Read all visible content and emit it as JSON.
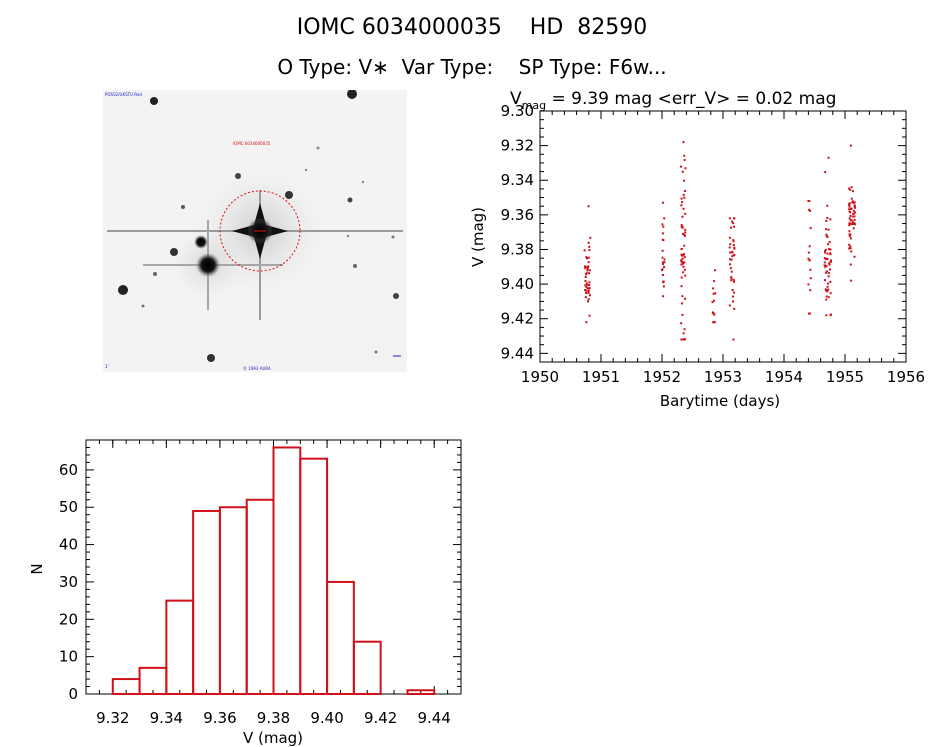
{
  "header": {
    "line1": "IOMC 6034000035    HD  82590",
    "line2": "O Type: V∗  Var Type:    SP Type: F6w..."
  },
  "image_panel": {
    "corner_top_left": "POSS2/UKSTU Red",
    "marker_label": "IOMC 6034000035",
    "bottom_label": "© 1993 AURA",
    "corner_bottom_left": "1'"
  },
  "colors": {
    "points": "#d0101a",
    "bars": "#d0101a",
    "axes": "#000000"
  },
  "chart_data": [
    {
      "type": "scatter",
      "title_parts": {
        "v": "V",
        "sub": "mag",
        "rest": " = 9.39 mag <err_V> = 0.02 mag"
      },
      "xlabel": "Barytime (days)",
      "ylabel": "V (mag)",
      "xlim": [
        1950,
        1956
      ],
      "ylim": [
        9.3,
        9.445
      ],
      "y_inverted": true,
      "xticks": [
        "1950",
        "1951",
        "1952",
        "1953",
        "1954",
        "1955",
        "1956"
      ],
      "yticks": [
        "9.30",
        "9.32",
        "9.34",
        "9.36",
        "9.38",
        "9.40",
        "9.42",
        "9.44"
      ],
      "clusters": [
        {
          "x_center": 1950.78,
          "x_spread": 0.1,
          "y_center": 9.395,
          "y_spread": 0.012,
          "y_min": 9.355,
          "y_max": 9.422,
          "count": 42
        },
        {
          "x_center": 1952.02,
          "x_spread": 0.05,
          "y_center": 9.38,
          "y_spread": 0.015,
          "y_min": 9.353,
          "y_max": 9.407,
          "count": 22
        },
        {
          "x_center": 1952.35,
          "x_spread": 0.08,
          "y_center": 9.38,
          "y_spread": 0.028,
          "y_min": 9.318,
          "y_max": 9.432,
          "count": 58
        },
        {
          "x_center": 1952.85,
          "x_spread": 0.05,
          "y_center": 9.405,
          "y_spread": 0.012,
          "y_min": 9.392,
          "y_max": 9.422,
          "count": 14
        },
        {
          "x_center": 1953.15,
          "x_spread": 0.08,
          "y_center": 9.39,
          "y_spread": 0.016,
          "y_min": 9.362,
          "y_max": 9.432,
          "count": 38
        },
        {
          "x_center": 1954.42,
          "x_spread": 0.04,
          "y_center": 9.385,
          "y_spread": 0.02,
          "y_min": 9.352,
          "y_max": 9.417,
          "count": 16
        },
        {
          "x_center": 1954.72,
          "x_spread": 0.11,
          "y_center": 9.385,
          "y_spread": 0.019,
          "y_min": 9.327,
          "y_max": 9.418,
          "count": 55
        },
        {
          "x_center": 1955.12,
          "x_spread": 0.11,
          "y_center": 9.36,
          "y_spread": 0.011,
          "y_min": 9.32,
          "y_max": 9.398,
          "count": 60
        }
      ]
    },
    {
      "type": "bar",
      "xlabel": "V (mag)",
      "ylabel": "N",
      "xlim": [
        9.31,
        9.45
      ],
      "ylim": [
        0,
        68
      ],
      "xticks": [
        "9.32",
        "9.34",
        "9.36",
        "9.38",
        "9.40",
        "9.42",
        "9.44"
      ],
      "yticks": [
        "0",
        "10",
        "20",
        "30",
        "40",
        "50",
        "60"
      ],
      "bin_width": 0.01,
      "bin_centers": [
        9.325,
        9.335,
        9.345,
        9.355,
        9.365,
        9.375,
        9.385,
        9.395,
        9.405,
        9.415,
        9.425,
        9.435
      ],
      "values": [
        4,
        7,
        25,
        49,
        50,
        52,
        66,
        63,
        30,
        14,
        0,
        1
      ]
    }
  ]
}
